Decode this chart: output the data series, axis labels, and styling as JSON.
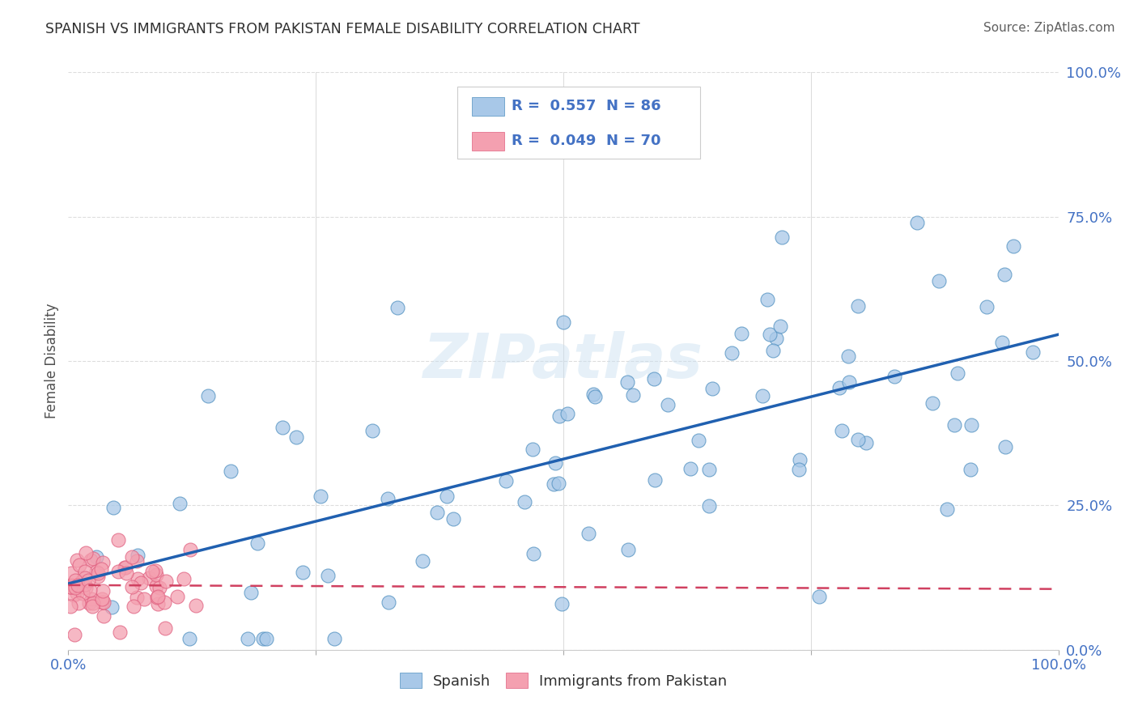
{
  "title": "SPANISH VS IMMIGRANTS FROM PAKISTAN FEMALE DISABILITY CORRELATION CHART",
  "source": "Source: ZipAtlas.com",
  "ylabel": "Female Disability",
  "yticks": [
    "0.0%",
    "25.0%",
    "50.0%",
    "75.0%",
    "100.0%"
  ],
  "ytick_vals": [
    0.0,
    0.25,
    0.5,
    0.75,
    1.0
  ],
  "legend_r1": "R =  0.557",
  "legend_n1": "N = 86",
  "legend_r2": "R =  0.049",
  "legend_n2": "N = 70",
  "blue_color": "#a8c8e8",
  "pink_color": "#f4a0b0",
  "blue_edge_color": "#5090c0",
  "pink_edge_color": "#e06080",
  "blue_line_color": "#2060b0",
  "pink_line_color": "#d04060",
  "title_color": "#303030",
  "axis_color": "#4472c4",
  "source_color": "#606060",
  "watermark": "ZIPatlas",
  "grid_color": "#dddddd",
  "seed": 12345
}
